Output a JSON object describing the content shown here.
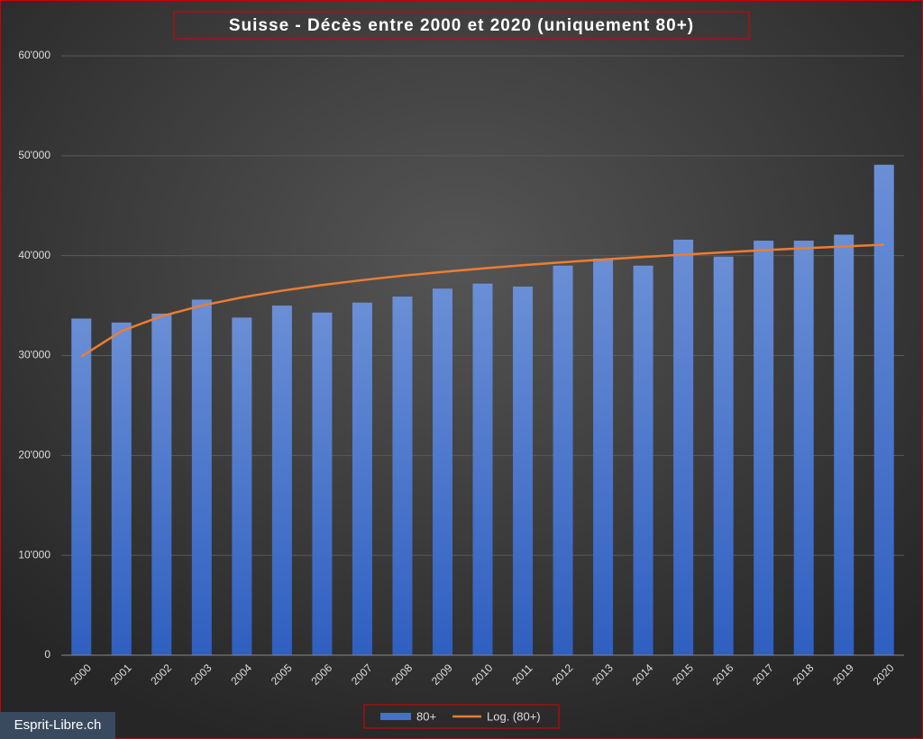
{
  "chart_data": {
    "type": "bar",
    "title": "Suisse - Décès entre 2000 et 2020 (uniquement 80+)",
    "categories": [
      "2000",
      "2001",
      "2002",
      "2003",
      "2004",
      "2005",
      "2006",
      "2007",
      "2008",
      "2009",
      "2010",
      "2011",
      "2012",
      "2013",
      "2014",
      "2015",
      "2016",
      "2017",
      "2018",
      "2019",
      "2020"
    ],
    "series": [
      {
        "name": "80+",
        "type": "bar",
        "color": "#4472c4",
        "values": [
          33700,
          33300,
          34200,
          35600,
          33800,
          35000,
          34300,
          35300,
          35900,
          36700,
          37200,
          36900,
          39000,
          39700,
          39000,
          41600,
          39900,
          41500,
          41500,
          42100,
          49100
        ]
      },
      {
        "name": "Log. (80+)",
        "type": "line",
        "color": "#ed7d31",
        "values": [
          29900,
          32450,
          33940,
          35000,
          35820,
          36490,
          37060,
          37550,
          37990,
          38370,
          38720,
          39040,
          39340,
          39610,
          39870,
          40100,
          40330,
          40540,
          40740,
          40920,
          41100
        ]
      }
    ],
    "ylim": [
      0,
      60000
    ],
    "yticks": [
      0,
      {
        "value": 10000,
        "label": "10'000"
      },
      {
        "value": 20000,
        "label": "20'000"
      },
      {
        "value": 30000,
        "label": "30'000"
      },
      {
        "value": 40000,
        "label": "40'000"
      },
      {
        "value": 50000,
        "label": "50'000"
      },
      {
        "value": 60000,
        "label": "60'000"
      }
    ],
    "grid": true,
    "legend": "bottom",
    "watermark": "Esprit-Libre.ch"
  }
}
